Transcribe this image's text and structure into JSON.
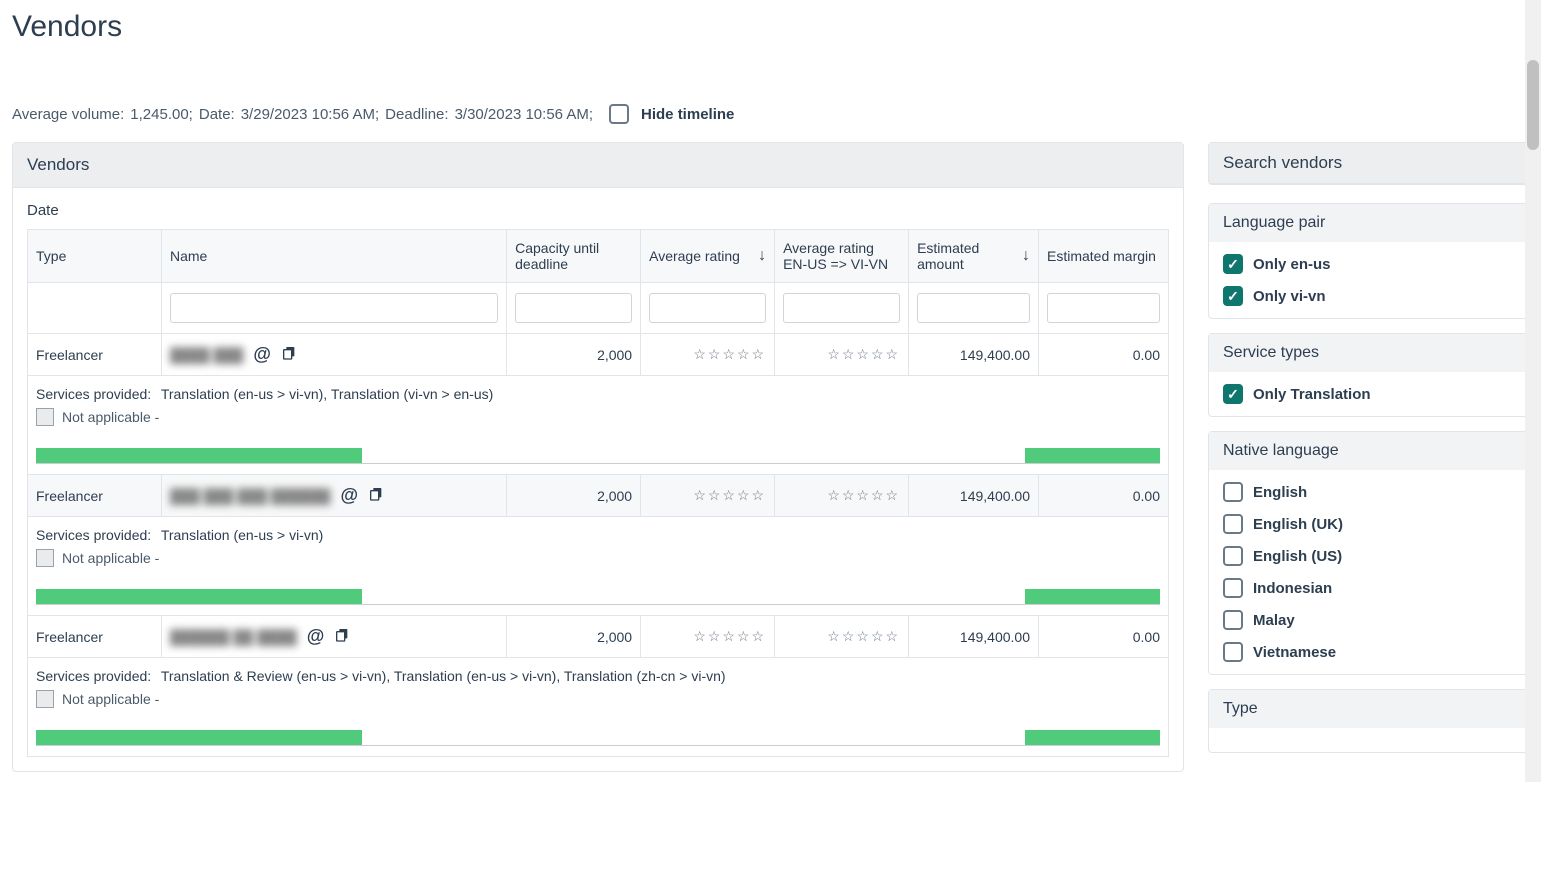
{
  "page_title": "Vendors",
  "meta": {
    "avg_volume_label": "Average volume:",
    "avg_volume_value": "1,245.00;",
    "date_label": "Date:",
    "date_value": "3/29/2023 10:56 AM;",
    "deadline_label": "Deadline:",
    "deadline_value": "3/30/2023 10:56 AM;",
    "hide_timeline_label": "Hide timeline"
  },
  "panel_title": "Vendors",
  "date_header": "Date",
  "columns": {
    "type": "Type",
    "name": "Name",
    "capacity": "Capacity until deadline",
    "avg_rating": "Average rating",
    "avg_rating_pair": "Average rating EN-US => VI-VN",
    "est_amount": "Estimated amount",
    "est_margin": "Estimated margin"
  },
  "services_label": "Services provided:",
  "not_applicable_label": "Not applicable -",
  "timeline": {
    "bar1_left_pct": 0,
    "bar1_width_pct": 29,
    "bar2_left_pct": 88,
    "bar2_width_pct": 12,
    "bar_color": "#4fcb7b"
  },
  "rows": [
    {
      "type": "Freelancer",
      "name_blur": "████ ███",
      "capacity": "2,000",
      "avg_rating_stars": "☆☆☆☆☆",
      "avg_rating_pair_stars": "☆☆☆☆☆",
      "est_amount": "149,400.00",
      "est_margin": "0.00",
      "services": "Translation (en-us > vi-vn), Translation (vi-vn > en-us)"
    },
    {
      "type": "Freelancer",
      "name_blur": "███ ███ ███ ██████",
      "capacity": "2,000",
      "avg_rating_stars": "☆☆☆☆☆",
      "avg_rating_pair_stars": "☆☆☆☆☆",
      "est_amount": "149,400.00",
      "est_margin": "0.00",
      "services": "Translation (en-us > vi-vn)"
    },
    {
      "type": "Freelancer",
      "name_blur": "██████ ██ ████",
      "capacity": "2,000",
      "avg_rating_stars": "☆☆☆☆☆",
      "avg_rating_pair_stars": "☆☆☆☆☆",
      "est_amount": "149,400.00",
      "est_margin": "0.00",
      "services": "Translation & Review (en-us > vi-vn), Translation (en-us > vi-vn), Translation (zh-cn > vi-vn)"
    }
  ],
  "sidebar": {
    "title": "Search vendors",
    "groups": {
      "language_pair": {
        "title": "Language pair",
        "items": [
          {
            "label": "Only en-us",
            "checked": true
          },
          {
            "label": "Only vi-vn",
            "checked": true
          }
        ]
      },
      "service_types": {
        "title": "Service types",
        "items": [
          {
            "label": "Only Translation",
            "checked": true
          }
        ]
      },
      "native_language": {
        "title": "Native language",
        "items": [
          {
            "label": "English",
            "checked": false
          },
          {
            "label": "English (UK)",
            "checked": false
          },
          {
            "label": "English (US)",
            "checked": false
          },
          {
            "label": "Indonesian",
            "checked": false
          },
          {
            "label": "Malay",
            "checked": false
          },
          {
            "label": "Vietnamese",
            "checked": false
          }
        ]
      },
      "type": {
        "title": "Type"
      }
    }
  },
  "colors": {
    "accent_check": "#0f766e",
    "bar": "#4fcb7b",
    "text": "#2d3e50",
    "border": "#e1e4e8"
  }
}
